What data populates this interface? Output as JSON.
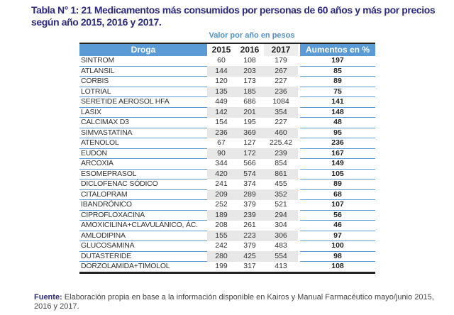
{
  "title": "Tabla N° 1: 21 Medicamentos más consumidos por personas de 60 años y más por precios según año 2015, 2016 y 2017.",
  "subheader": "Valor por año en pesos",
  "headers": {
    "drug": "Droga",
    "y2015": "2015",
    "y2016": "2016",
    "y2017": "2017",
    "increase": "Aumentos en %"
  },
  "rows": [
    [
      "SINTROM",
      "60",
      "108",
      "179",
      "197"
    ],
    [
      "ATLANSIL",
      "144",
      "203",
      "267",
      "85"
    ],
    [
      "CORBIS",
      "120",
      "173",
      "227",
      "89"
    ],
    [
      "LOTRIAL",
      "135",
      "185",
      "236",
      "75"
    ],
    [
      "SERETIDE AEROSOL HFA",
      "449",
      "686",
      "1084",
      "141"
    ],
    [
      "LASIX",
      "142",
      "201",
      "354",
      "148"
    ],
    [
      "CALCIMAX D3",
      "154",
      "195",
      "227",
      "48"
    ],
    [
      "SIMVASTATINA",
      "236",
      "369",
      "460",
      "95"
    ],
    [
      "ATENOLOL",
      "67",
      "127",
      "225.42",
      "236"
    ],
    [
      "EUDON",
      "90",
      "172",
      "239",
      "167"
    ],
    [
      "ARCOXIA",
      "344",
      "566",
      "854",
      "149"
    ],
    [
      "ESOMEPRASOL",
      "420",
      "574",
      "861",
      "105"
    ],
    [
      "DICLOFENAC SÓDICO",
      "241",
      "374",
      "455",
      "89"
    ],
    [
      "CITALOPRAM",
      "209",
      "289",
      "352",
      "68"
    ],
    [
      "IBANDRÓNICO",
      "252",
      "379",
      "521",
      "107"
    ],
    [
      "CIPROFLOXACINA",
      "189",
      "239",
      "294",
      "56"
    ],
    [
      "AMOXICILINA+CLAVULÁNICO, ÁC.",
      "208",
      "261",
      "304",
      "46"
    ],
    [
      "AMLODIPINA",
      "155",
      "223",
      "306",
      "97"
    ],
    [
      "GLUCOSAMINA",
      "242",
      "379",
      "483",
      "100"
    ],
    [
      "DUTASTERIDE",
      "280",
      "425",
      "554",
      "98"
    ],
    [
      "DORZOLAMIDA+TIMOLOL",
      "199",
      "317",
      "413",
      "108"
    ]
  ],
  "footer": {
    "label": "Fuente:",
    "text": " Elaboración propia en base a la información disponible en Kairos y Manual Farmacéutico mayo/junio 2015, 2016 y 2017."
  }
}
